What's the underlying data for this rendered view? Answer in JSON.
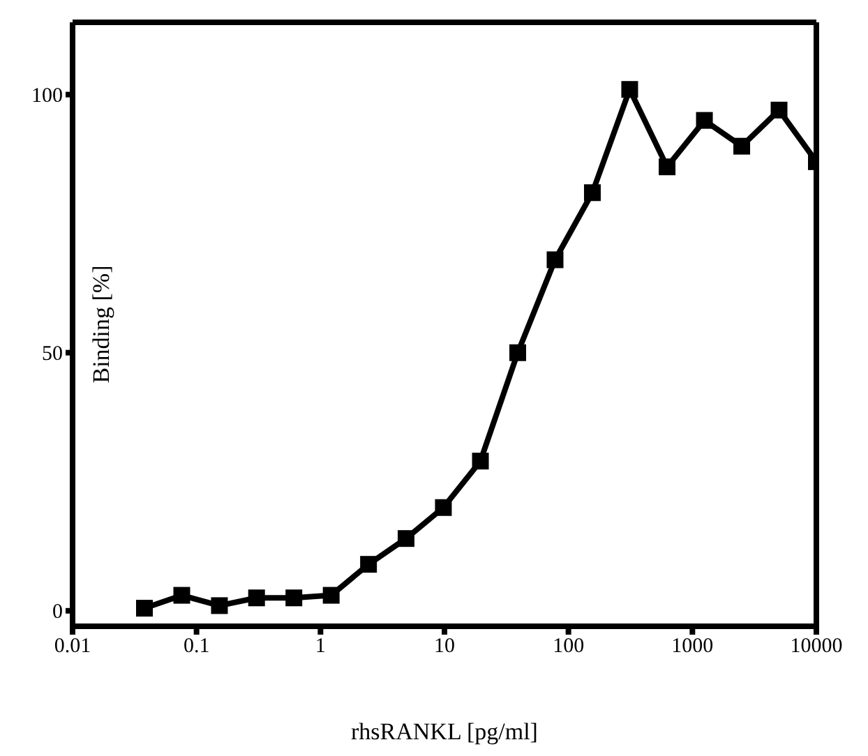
{
  "chart_data": {
    "type": "line",
    "xlabel": "rhsRANKL [pg/ml]",
    "ylabel": "Binding [%]",
    "x": [
      0.038,
      0.076,
      0.153,
      0.305,
      0.61,
      1.22,
      2.44,
      4.9,
      9.8,
      19.5,
      39,
      78,
      156,
      312,
      625,
      1250,
      2500,
      5000,
      10000
    ],
    "series": [
      {
        "color": "#000000",
        "values": [
          0.5,
          3,
          1,
          2.5,
          2.5,
          3,
          9,
          14,
          20,
          29,
          50,
          68,
          81,
          101,
          86,
          95,
          90,
          97,
          87
        ]
      }
    ],
    "log": "x",
    "xlim": [
      0.01,
      10000
    ],
    "xticks": [
      0.01,
      0.1,
      1,
      10,
      100,
      1000,
      10000
    ],
    "ylim": [
      -3,
      114
    ],
    "yticks": [
      0,
      50,
      100
    ],
    "marker": "square",
    "line_style": "solid"
  }
}
